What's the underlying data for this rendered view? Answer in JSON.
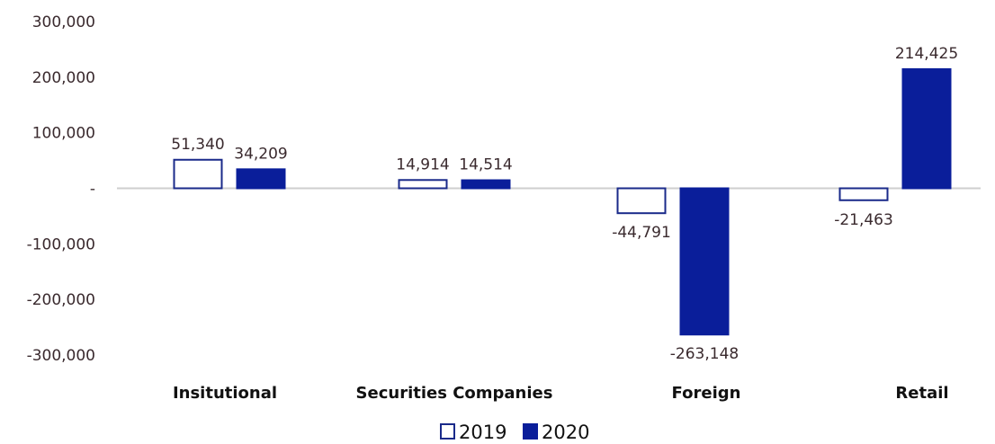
{
  "chart_data": {
    "type": "bar",
    "categories": [
      "Insitutional",
      "Securities Companies",
      "Foreign",
      "Retail"
    ],
    "series": [
      {
        "name": "2019",
        "values": [
          51340,
          14914,
          -44791,
          -21463
        ],
        "color": "#ffffff",
        "stroke": "#1a2a8a"
      },
      {
        "name": "2020",
        "values": [
          34209,
          14514,
          -263148,
          214425
        ],
        "color": "#0a1e9a",
        "stroke": "#0a1e9a"
      }
    ],
    "data_labels": [
      [
        "51,340",
        "14,914",
        "-44,791",
        "-21,463"
      ],
      [
        "34,209",
        "14,514",
        "-263,148",
        "214,425"
      ]
    ],
    "yticks": [
      300000,
      200000,
      100000,
      0,
      -100000,
      -200000,
      -300000
    ],
    "ytick_labels": [
      "300,000",
      "200,000",
      "100,000",
      "-",
      "-100,000",
      "-200,000",
      "-300,000"
    ],
    "ylim": [
      -300000,
      300000
    ],
    "grid": false,
    "legend": {
      "position": "bottom",
      "entries": [
        "2019",
        "2020"
      ]
    },
    "title": "",
    "xlabel": "",
    "ylabel": ""
  }
}
